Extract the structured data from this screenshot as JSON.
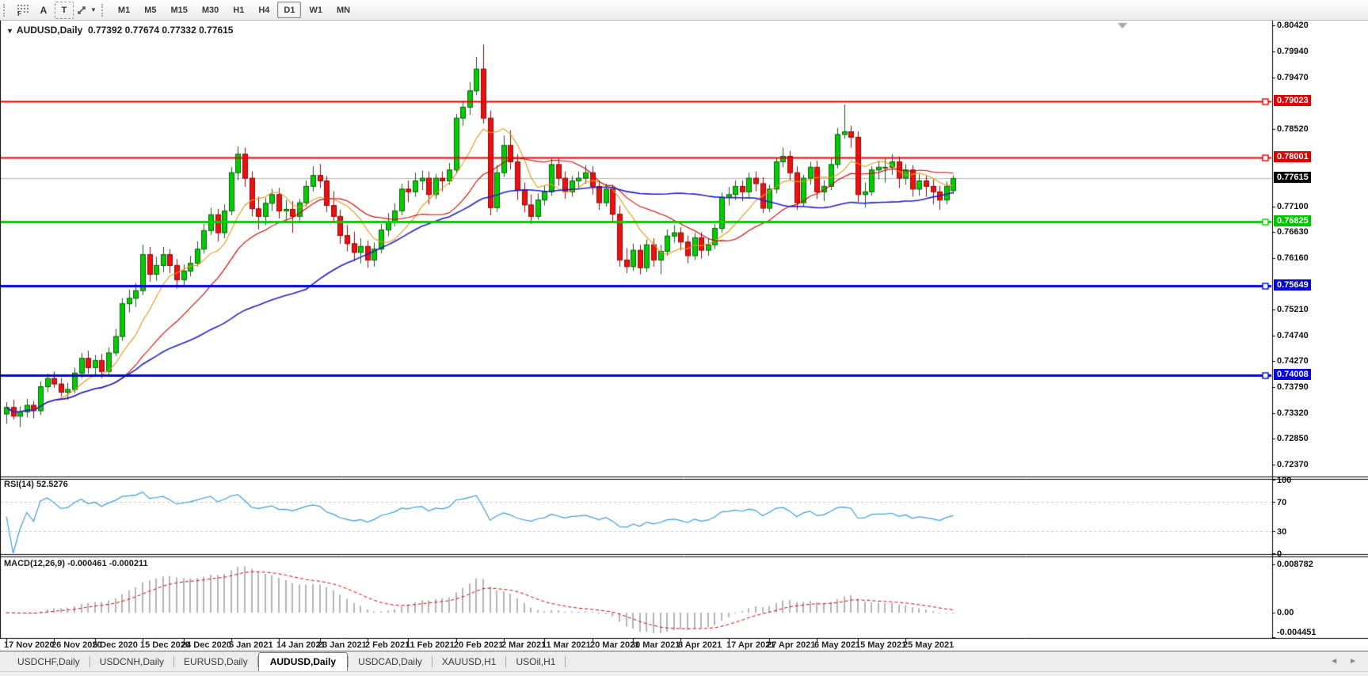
{
  "toolbar": {
    "tools": [
      {
        "id": "grid-f-tool",
        "label": "F"
      },
      {
        "id": "text-label-tool",
        "label": "A"
      },
      {
        "id": "text-box-tool",
        "label": "T"
      },
      {
        "id": "arrows-tool",
        "label": ""
      }
    ],
    "timeframes": [
      "M1",
      "M5",
      "M15",
      "M30",
      "H1",
      "H4",
      "D1",
      "W1",
      "MN"
    ],
    "active_timeframe": "D1"
  },
  "chart_header": {
    "symbol": "AUDUSD,Daily",
    "ohlc": "0.77392 0.77674 0.77332 0.77615"
  },
  "price_axis": {
    "ticks": [
      "0.80420",
      "0.79940",
      "0.79470",
      "0.78520",
      "0.77100",
      "0.76630",
      "0.76160",
      "0.75210",
      "0.74740",
      "0.74270",
      "0.73790",
      "0.73320",
      "0.72850",
      "0.72370"
    ],
    "badges": [
      {
        "label": "0.79023",
        "bg": "#dd0000",
        "fg": "#ffffff"
      },
      {
        "label": "0.78001",
        "bg": "#dd0000",
        "fg": "#ffffff"
      },
      {
        "label": "0.77615",
        "bg": "#000000",
        "fg": "#ffffff"
      },
      {
        "label": "0.76825",
        "bg": "#00c400",
        "fg": "#ffffff"
      },
      {
        "label": "0.75649",
        "bg": "#0000d8",
        "fg": "#ffffff"
      },
      {
        "label": "0.74008",
        "bg": "#0000d8",
        "fg": "#ffffff"
      }
    ]
  },
  "rsi_panel": {
    "label": "RSI(14) 52.5276",
    "levels": [
      "100",
      "70",
      "30",
      "0"
    ]
  },
  "macd_panel": {
    "label": "MACD(12,26,9) -0.000461 -0.000211",
    "ticks": [
      "0.008782",
      "0.00",
      "-0.004451"
    ]
  },
  "date_axis": {
    "labels": [
      "17 Nov 2020",
      "26 Nov 2020",
      "5 Dec 2020",
      "15 Dec 2020",
      "24 Dec 2020",
      "5 Jan 2021",
      "14 Jan 2021",
      "23 Jan 2021",
      "2 Feb 2021",
      "11 Feb 2021",
      "20 Feb 2021",
      "2 Mar 2021",
      "11 Mar 2021",
      "20 Mar 2021",
      "30 Mar 2021",
      "8 Apr 2021",
      "17 Apr 2021",
      "27 Apr 2021",
      "6 May 2021",
      "15 May 2021",
      "25 May 2021"
    ]
  },
  "tab_bar": {
    "tabs": [
      "USDCHF,Daily",
      "USDCNH,Daily",
      "EURUSD,Daily",
      "AUDUSD,Daily",
      "USDCAD,Daily",
      "XAUUSD,H1",
      "USOil,H1"
    ],
    "active": "AUDUSD,Daily",
    "scroll_left": "◄",
    "scroll_right": "►"
  },
  "chart_data": {
    "type": "candlestick",
    "symbol": "AUDUSD",
    "timeframe": "Daily",
    "title": "AUDUSD,Daily",
    "current_bar": {
      "open": 0.77392,
      "high": 0.77674,
      "low": 0.77332,
      "close": 0.77615
    },
    "current_price": 0.77615,
    "y_axis": {
      "min": 0.72155,
      "max": 0.80507
    },
    "x_labels": [
      "17 Nov 2020",
      "26 Nov 2020",
      "5 Dec 2020",
      "15 Dec 2020",
      "24 Dec 2020",
      "5 Jan 2021",
      "14 Jan 2021",
      "23 Jan 2021",
      "2 Feb 2021",
      "11 Feb 2021",
      "20 Feb 2021",
      "2 Mar 2021",
      "11 Mar 2021",
      "20 Mar 2021",
      "30 Mar 2021",
      "8 Apr 2021",
      "17 Apr 2021",
      "27 Apr 2021",
      "6 May 2021",
      "15 May 2021",
      "25 May 2021"
    ],
    "horizontal_lines": [
      {
        "price": 0.79023,
        "color": "#e60000",
        "width": 2
      },
      {
        "price": 0.78001,
        "color": "#e60000",
        "width": 2
      },
      {
        "price": 0.76825,
        "color": "#00ce00",
        "width": 3
      },
      {
        "price": 0.75649,
        "color": "#0000e0",
        "width": 3
      },
      {
        "price": 0.74008,
        "color": "#0000e0",
        "width": 3
      }
    ],
    "current_price_line": {
      "price": 0.77615,
      "color": "#b4b4b4"
    },
    "moving_averages": [
      {
        "period": 8,
        "color": "#e09a18"
      },
      {
        "period": 18,
        "color": "#d40000"
      },
      {
        "period": 45,
        "color": "#2020c8"
      }
    ],
    "candle_style": {
      "up_fill": "#00ce00",
      "up_stroke": "#135c13",
      "down_fill": "#ee1010",
      "down_stroke": "#8a0a0a"
    },
    "indicators": [
      {
        "name": "RSI",
        "params": "14",
        "value": "52.5276",
        "levels": [
          100,
          70,
          30,
          0
        ],
        "line_color": "#3e9ed9"
      },
      {
        "name": "MACD",
        "params": "12,26,9",
        "values": [
          "-0.000461",
          "-0.000211"
        ],
        "axis_ticks": [
          "0.008782",
          "0.00",
          "-0.004451"
        ],
        "histogram_color": "#b5b5b5",
        "signal_color": "#dd0000"
      }
    ],
    "candles": [
      [
        0.733,
        0.7352,
        0.7312,
        0.7342
      ],
      [
        0.7342,
        0.7356,
        0.732,
        0.7326
      ],
      [
        0.7326,
        0.7344,
        0.7306,
        0.7334
      ],
      [
        0.7334,
        0.7358,
        0.7324,
        0.7346
      ],
      [
        0.7346,
        0.7354,
        0.7322,
        0.7336
      ],
      [
        0.7336,
        0.739,
        0.7328,
        0.738
      ],
      [
        0.738,
        0.7404,
        0.737,
        0.7395
      ],
      [
        0.7395,
        0.7408,
        0.7378,
        0.7385
      ],
      [
        0.7385,
        0.7396,
        0.7362,
        0.737
      ],
      [
        0.737,
        0.7387,
        0.7356,
        0.7375
      ],
      [
        0.7375,
        0.7415,
        0.7368,
        0.7405
      ],
      [
        0.7405,
        0.7442,
        0.7396,
        0.7432
      ],
      [
        0.7432,
        0.7446,
        0.7404,
        0.7415
      ],
      [
        0.7415,
        0.7438,
        0.7402,
        0.7428
      ],
      [
        0.7428,
        0.744,
        0.7396,
        0.7408
      ],
      [
        0.7408,
        0.7452,
        0.74,
        0.7442
      ],
      [
        0.7442,
        0.7486,
        0.7436,
        0.7472
      ],
      [
        0.7472,
        0.7542,
        0.7464,
        0.7532
      ],
      [
        0.7532,
        0.7558,
        0.7516,
        0.7542
      ],
      [
        0.7542,
        0.757,
        0.7526,
        0.7556
      ],
      [
        0.7556,
        0.764,
        0.7548,
        0.7622
      ],
      [
        0.7622,
        0.7636,
        0.7572,
        0.7586
      ],
      [
        0.7586,
        0.7618,
        0.7574,
        0.7602
      ],
      [
        0.7602,
        0.7636,
        0.759,
        0.7622
      ],
      [
        0.7622,
        0.7632,
        0.7588,
        0.7602
      ],
      [
        0.7602,
        0.7614,
        0.756,
        0.7576
      ],
      [
        0.7576,
        0.7604,
        0.7564,
        0.7592
      ],
      [
        0.7592,
        0.762,
        0.7582,
        0.7606
      ],
      [
        0.7606,
        0.7646,
        0.76,
        0.7632
      ],
      [
        0.7632,
        0.7678,
        0.7624,
        0.7666
      ],
      [
        0.7666,
        0.7708,
        0.7658,
        0.7695
      ],
      [
        0.7695,
        0.7706,
        0.7646,
        0.7662
      ],
      [
        0.7662,
        0.7714,
        0.7652,
        0.7702
      ],
      [
        0.7702,
        0.7782,
        0.7694,
        0.7772
      ],
      [
        0.7772,
        0.782,
        0.7758,
        0.7806
      ],
      [
        0.7806,
        0.7818,
        0.7746,
        0.7762
      ],
      [
        0.7762,
        0.7774,
        0.7692,
        0.7706
      ],
      [
        0.7706,
        0.7728,
        0.7668,
        0.7692
      ],
      [
        0.7692,
        0.7726,
        0.7676,
        0.7716
      ],
      [
        0.7716,
        0.7742,
        0.7702,
        0.7732
      ],
      [
        0.7732,
        0.7744,
        0.7688,
        0.7702
      ],
      [
        0.7702,
        0.7722,
        0.7686,
        0.7705
      ],
      [
        0.7705,
        0.772,
        0.7662,
        0.7692
      ],
      [
        0.7692,
        0.7724,
        0.7684,
        0.7717
      ],
      [
        0.7717,
        0.7758,
        0.771,
        0.7747
      ],
      [
        0.7747,
        0.7784,
        0.7738,
        0.7767
      ],
      [
        0.7767,
        0.7788,
        0.7744,
        0.7757
      ],
      [
        0.7757,
        0.7766,
        0.77,
        0.7712
      ],
      [
        0.7712,
        0.7738,
        0.768,
        0.7692
      ],
      [
        0.7692,
        0.7704,
        0.7642,
        0.7657
      ],
      [
        0.7657,
        0.7676,
        0.7628,
        0.7642
      ],
      [
        0.7642,
        0.7664,
        0.761,
        0.7626
      ],
      [
        0.7626,
        0.7652,
        0.7606,
        0.7637
      ],
      [
        0.7637,
        0.7648,
        0.7598,
        0.7612
      ],
      [
        0.7612,
        0.7644,
        0.76,
        0.7632
      ],
      [
        0.7632,
        0.7678,
        0.7624,
        0.7667
      ],
      [
        0.7667,
        0.7698,
        0.7656,
        0.7682
      ],
      [
        0.7682,
        0.7716,
        0.7674,
        0.7702
      ],
      [
        0.7702,
        0.7752,
        0.7694,
        0.7742
      ],
      [
        0.7742,
        0.7758,
        0.7718,
        0.7737
      ],
      [
        0.7737,
        0.7772,
        0.7728,
        0.7757
      ],
      [
        0.7757,
        0.7776,
        0.774,
        0.7762
      ],
      [
        0.7762,
        0.7774,
        0.7714,
        0.7732
      ],
      [
        0.7732,
        0.777,
        0.7724,
        0.7762
      ],
      [
        0.7762,
        0.7774,
        0.7738,
        0.7757
      ],
      [
        0.7757,
        0.779,
        0.775,
        0.7777
      ],
      [
        0.7777,
        0.788,
        0.777,
        0.7872
      ],
      [
        0.7872,
        0.7904,
        0.7858,
        0.7892
      ],
      [
        0.7892,
        0.7938,
        0.7878,
        0.7922
      ],
      [
        0.7922,
        0.7984,
        0.7914,
        0.7962
      ],
      [
        0.7962,
        0.8007,
        0.7862,
        0.7872
      ],
      [
        0.7872,
        0.7886,
        0.7694,
        0.7708
      ],
      [
        0.7708,
        0.7786,
        0.77,
        0.7772
      ],
      [
        0.7772,
        0.784,
        0.7764,
        0.7822
      ],
      [
        0.7822,
        0.785,
        0.7778,
        0.7792
      ],
      [
        0.7792,
        0.7806,
        0.7722,
        0.774
      ],
      [
        0.774,
        0.7754,
        0.77,
        0.7713
      ],
      [
        0.7713,
        0.7732,
        0.7678,
        0.7692
      ],
      [
        0.7692,
        0.7734,
        0.7686,
        0.7722
      ],
      [
        0.7722,
        0.7748,
        0.7712,
        0.7737
      ],
      [
        0.7737,
        0.7798,
        0.773,
        0.7787
      ],
      [
        0.7787,
        0.78,
        0.7748,
        0.7762
      ],
      [
        0.7762,
        0.7774,
        0.7724,
        0.7737
      ],
      [
        0.7737,
        0.7766,
        0.7728,
        0.7757
      ],
      [
        0.7757,
        0.7774,
        0.7744,
        0.7762
      ],
      [
        0.7762,
        0.7786,
        0.7752,
        0.7772
      ],
      [
        0.7772,
        0.7784,
        0.7732,
        0.7747
      ],
      [
        0.7747,
        0.7758,
        0.7704,
        0.7717
      ],
      [
        0.7717,
        0.7752,
        0.771,
        0.7742
      ],
      [
        0.7742,
        0.775,
        0.7682,
        0.7696
      ],
      [
        0.7696,
        0.7712,
        0.76,
        0.7612
      ],
      [
        0.7612,
        0.7634,
        0.7588,
        0.76
      ],
      [
        0.76,
        0.7642,
        0.7592,
        0.763
      ],
      [
        0.763,
        0.764,
        0.7586,
        0.7598
      ],
      [
        0.7598,
        0.765,
        0.759,
        0.764
      ],
      [
        0.764,
        0.7652,
        0.76,
        0.7612
      ],
      [
        0.7612,
        0.764,
        0.7586,
        0.7628
      ],
      [
        0.7628,
        0.7668,
        0.762,
        0.7656
      ],
      [
        0.7656,
        0.7676,
        0.7644,
        0.7662
      ],
      [
        0.7662,
        0.7672,
        0.763,
        0.7645
      ],
      [
        0.7645,
        0.7657,
        0.7606,
        0.762
      ],
      [
        0.762,
        0.7662,
        0.7612,
        0.7653
      ],
      [
        0.7653,
        0.7663,
        0.7615,
        0.763
      ],
      [
        0.763,
        0.7652,
        0.762,
        0.764
      ],
      [
        0.764,
        0.7678,
        0.7632,
        0.767
      ],
      [
        0.767,
        0.7736,
        0.7662,
        0.7727
      ],
      [
        0.7727,
        0.7746,
        0.7712,
        0.7732
      ],
      [
        0.7732,
        0.7758,
        0.7722,
        0.7747
      ],
      [
        0.7747,
        0.7758,
        0.772,
        0.7737
      ],
      [
        0.7737,
        0.7772,
        0.7728,
        0.7762
      ],
      [
        0.7762,
        0.7774,
        0.7738,
        0.7752
      ],
      [
        0.7752,
        0.7764,
        0.7698,
        0.7707
      ],
      [
        0.7707,
        0.775,
        0.77,
        0.7742
      ],
      [
        0.7742,
        0.78,
        0.7734,
        0.7792
      ],
      [
        0.7792,
        0.7818,
        0.7782,
        0.7802
      ],
      [
        0.7802,
        0.7812,
        0.7758,
        0.7772
      ],
      [
        0.7772,
        0.7784,
        0.7704,
        0.7717
      ],
      [
        0.7717,
        0.7768,
        0.771,
        0.7762
      ],
      [
        0.7762,
        0.7792,
        0.775,
        0.7782
      ],
      [
        0.7782,
        0.7794,
        0.7724,
        0.7737
      ],
      [
        0.7737,
        0.7758,
        0.772,
        0.7747
      ],
      [
        0.7747,
        0.7798,
        0.774,
        0.7787
      ],
      [
        0.7787,
        0.7854,
        0.778,
        0.7842
      ],
      [
        0.7842,
        0.7897,
        0.7834,
        0.7847
      ],
      [
        0.7847,
        0.7858,
        0.7818,
        0.7837
      ],
      [
        0.7837,
        0.7848,
        0.7718,
        0.7732
      ],
      [
        0.7732,
        0.7754,
        0.7708,
        0.7737
      ],
      [
        0.7737,
        0.7784,
        0.773,
        0.7777
      ],
      [
        0.7777,
        0.7794,
        0.776,
        0.7782
      ],
      [
        0.7782,
        0.7798,
        0.7754,
        0.7782
      ],
      [
        0.7782,
        0.7806,
        0.7768,
        0.7792
      ],
      [
        0.7792,
        0.7802,
        0.7744,
        0.7762
      ],
      [
        0.7762,
        0.7788,
        0.775,
        0.7777
      ],
      [
        0.7777,
        0.7786,
        0.7728,
        0.7742
      ],
      [
        0.7742,
        0.777,
        0.773,
        0.7757
      ],
      [
        0.7757,
        0.7766,
        0.7728,
        0.7747
      ],
      [
        0.7747,
        0.776,
        0.7714,
        0.7737
      ],
      [
        0.7737,
        0.7748,
        0.7704,
        0.7722
      ],
      [
        0.7722,
        0.7756,
        0.7714,
        0.7747
      ],
      [
        0.77392,
        0.77674,
        0.77332,
        0.77615
      ]
    ]
  }
}
